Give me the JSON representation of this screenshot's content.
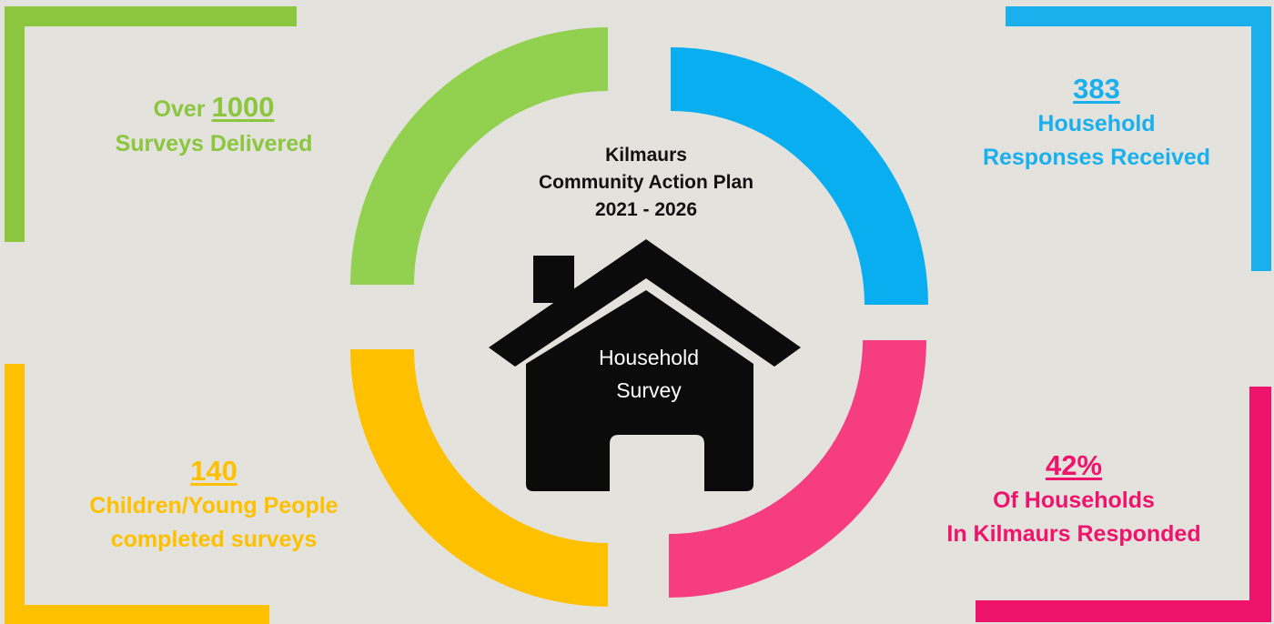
{
  "title": {
    "line1": "Kilmaurs",
    "line2": "Community Action Plan",
    "line3": "2021 - 2026"
  },
  "house": {
    "line1": "Household",
    "line2": "Survey"
  },
  "stats": {
    "surveys": {
      "prefix": "Over ",
      "number": "1000",
      "line": "Surveys Delivered",
      "color": "#8cc63f"
    },
    "responses": {
      "number": "383",
      "line1": "Household",
      "line2": "Responses Received",
      "color": "#1ab0ee"
    },
    "children": {
      "number": "140",
      "line1": "Children/Young People",
      "line2": "completed surveys",
      "color": "#ffc000"
    },
    "percent": {
      "number": "42%",
      "line1": "Of Households",
      "line2": "In Kilmaurs Responded",
      "color": "#f0136c"
    }
  },
  "colors": {
    "background": "#e3e2dd",
    "green": "#8cc63f",
    "blue": "#1ab0ee",
    "yellow": "#ffc000",
    "pink": "#f0136c",
    "pink_arc": "#f63d7f",
    "house": "#0b0b0b"
  }
}
